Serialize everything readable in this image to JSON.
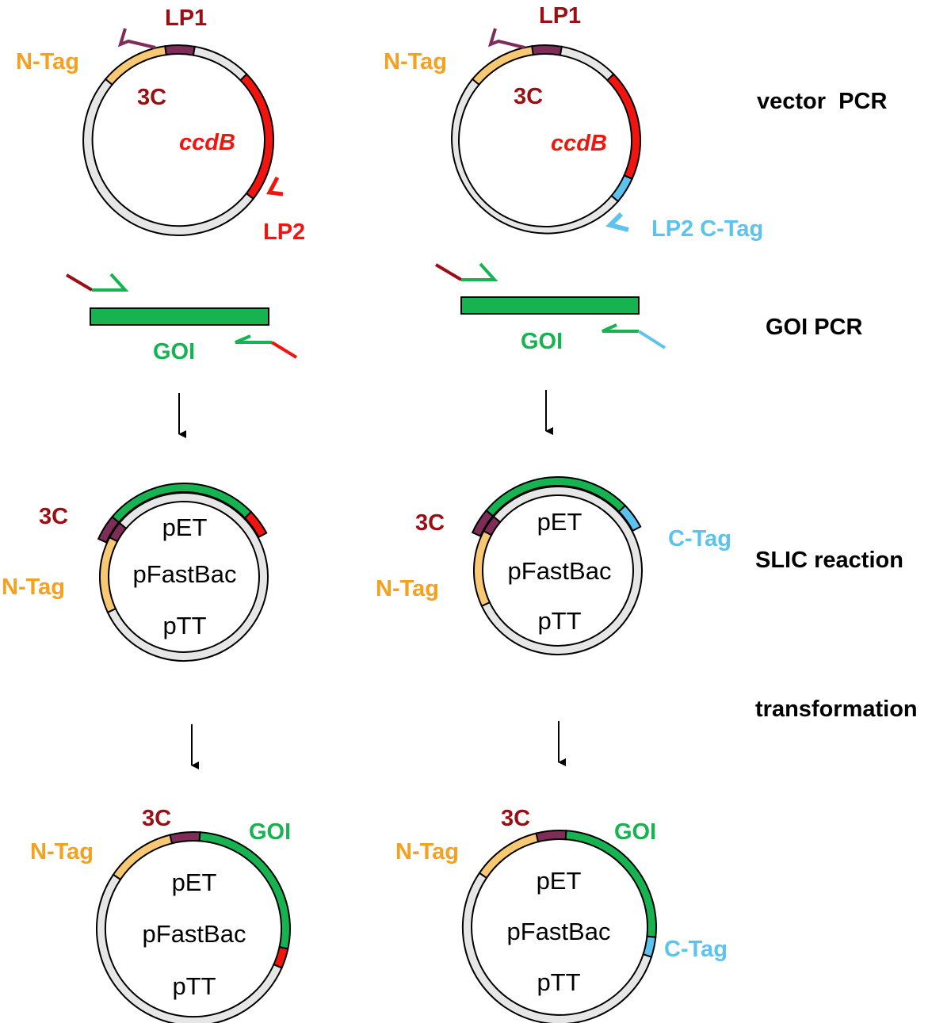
{
  "labels": {
    "n_tag": "N-Tag",
    "three_c": "3C",
    "lp1": "LP1",
    "lp2": "LP2",
    "lp2_c_tag": "LP2 C-Tag",
    "ccdb": "ccdB",
    "goi": "GOI",
    "c_tag": "C-Tag"
  },
  "vectors": [
    "pET",
    "pFastBac",
    "pTT"
  ],
  "steps": {
    "vector_pcr": "vector  PCR",
    "goi_pcr": "GOI PCR",
    "slic": "SLIC reaction",
    "transformation": "transformation"
  },
  "colors": {
    "n_tag": "#f5a01e",
    "n_tag_fill": "#f9c872",
    "three_c": "#990f14",
    "three_c_fill": "#7e2c58",
    "ccdb": "#f0160f",
    "c_tag": "#5cc3ef",
    "goi": "#17b351",
    "backbone": "#e6e6e6"
  }
}
